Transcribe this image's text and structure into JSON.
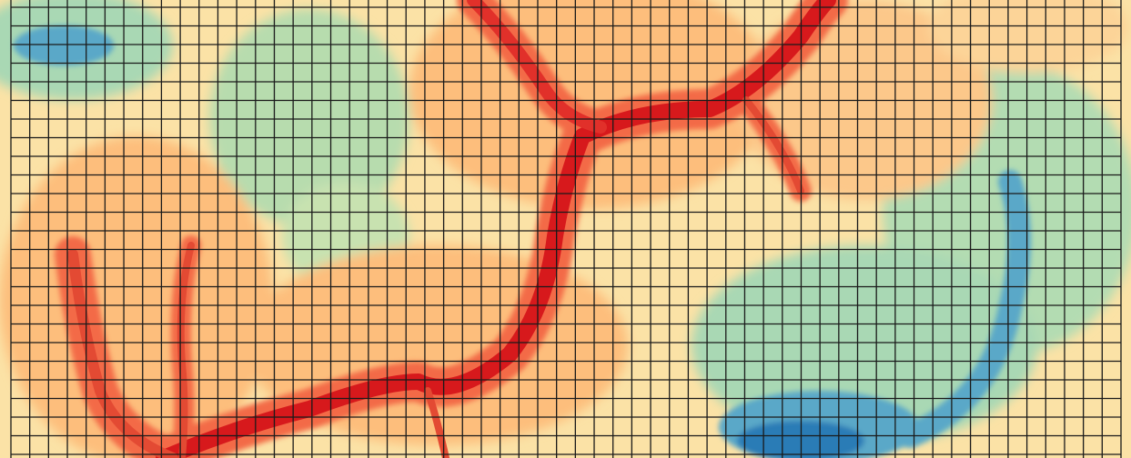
{
  "map": {
    "type": "elevation-raster-with-grid",
    "grid": {
      "shown": true,
      "columns": 59,
      "rows": 24,
      "line_color": "#1a1a1a"
    },
    "palette": {
      "low": "#2c7bb6",
      "low_mid": "#5aa8c8",
      "mid_low": "#a9d8b4",
      "mid": "#fff2ae",
      "mid_high": "#fdbe7c",
      "high": "#f36b47",
      "peak": "#d7191c"
    }
  }
}
